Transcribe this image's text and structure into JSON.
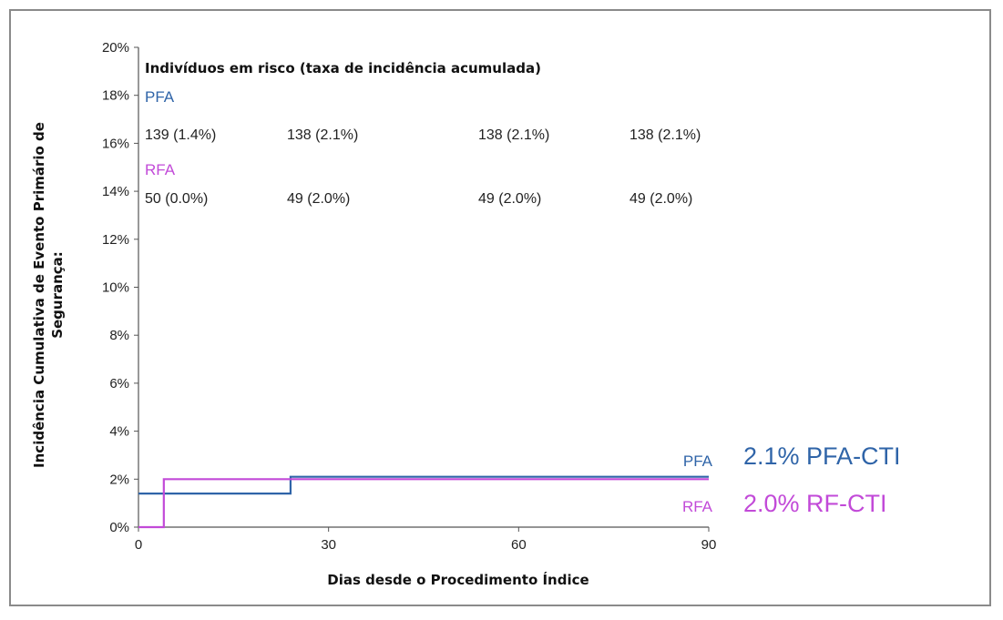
{
  "chart_data": {
    "type": "line",
    "step": true,
    "xlabel": "Dias desde o Procedimento Índice",
    "ylabel_lines": [
      "Incidência Cumulativa de Evento Primário de",
      "Segurança:"
    ],
    "xlim": [
      0,
      90
    ],
    "ylim": [
      0,
      20
    ],
    "x_ticks": [
      0,
      30,
      60,
      90
    ],
    "y_ticks": [
      0,
      2,
      4,
      6,
      8,
      10,
      12,
      14,
      16,
      18,
      20
    ],
    "y_tick_labels": [
      "0%",
      "2%",
      "4%",
      "6%",
      "8%",
      "10%",
      "12%",
      "14%",
      "16%",
      "18%",
      "20%"
    ],
    "grid": false,
    "series": [
      {
        "name": "PFA",
        "color": "#2f64a8",
        "x": [
          0,
          24,
          24,
          90
        ],
        "y": [
          1.4,
          1.4,
          2.1,
          2.1
        ],
        "end_label": "PFA",
        "end_value": "2.1% PFA-CTI"
      },
      {
        "name": "RFA",
        "color": "#c24ad8",
        "x": [
          0,
          4,
          4,
          90
        ],
        "y": [
          0,
          0,
          2.0,
          2.0
        ],
        "end_label": "RFA",
        "end_value": "2.0% RF-CTI"
      }
    ],
    "risk_table": {
      "title": "Indivíduos em risco (taxa de incidência acumulada)",
      "groups": [
        {
          "name": "PFA",
          "color": "#2f64a8",
          "values": [
            "139 (1.4%)",
            "138 (2.1%)",
            "138 (2.1%)",
            "138 (2.1%)"
          ]
        },
        {
          "name": "RFA",
          "color": "#c24ad8",
          "values": [
            "50 (0.0%)",
            "49 (2.0%)",
            "49 (2.0%)",
            "49 (2.0%)"
          ]
        }
      ]
    }
  }
}
